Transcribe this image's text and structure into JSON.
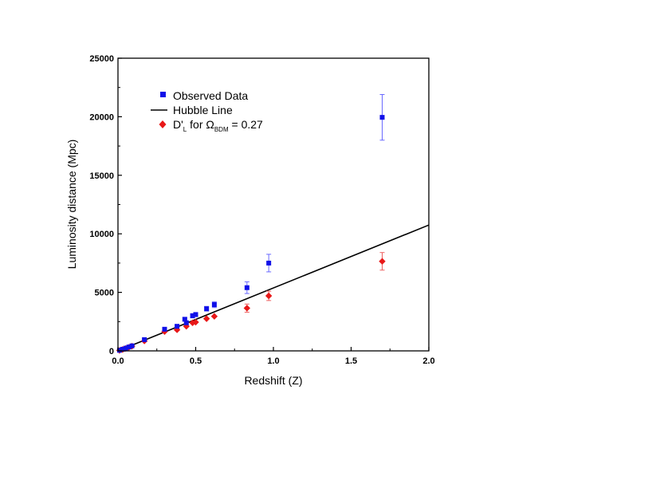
{
  "chart_data": {
    "type": "scatter",
    "xlabel": "Redshift (Z)",
    "ylabel": "Luminosity distance (Mpc)",
    "xlim": [
      0,
      2.0
    ],
    "ylim": [
      0,
      25000
    ],
    "x_ticks": [
      "0.0",
      "0.5",
      "1.0",
      "1.5",
      "2.0"
    ],
    "y_ticks": [
      "0",
      "5000",
      "10000",
      "15000",
      "20000",
      "25000"
    ],
    "grid": false,
    "legend_position": "top-left",
    "legend": {
      "observed": "Observed Data",
      "hubble": "Hubble Line",
      "dl_prefix": "D'",
      "dl_sub": "L",
      "dl_mid": " for ",
      "omega": "Ω",
      "omega_sub": "BDM",
      "dl_suffix": " = 0.27"
    },
    "colors": {
      "observed": "#1010e8",
      "hubble": "#000000",
      "dl": "#e81818",
      "observed_err": "#6a6aff",
      "dl_err": "#ee6060"
    },
    "series": [
      {
        "name": "Observed Data",
        "marker": "square",
        "points": [
          {
            "x": 0.01,
            "y": 50,
            "err": 0
          },
          {
            "x": 0.03,
            "y": 140,
            "err": 0
          },
          {
            "x": 0.05,
            "y": 230,
            "err": 0
          },
          {
            "x": 0.07,
            "y": 330,
            "err": 0
          },
          {
            "x": 0.09,
            "y": 430,
            "err": 0
          },
          {
            "x": 0.17,
            "y": 960,
            "err": 60
          },
          {
            "x": 0.3,
            "y": 1850,
            "err": 80
          },
          {
            "x": 0.38,
            "y": 2100,
            "err": 100
          },
          {
            "x": 0.43,
            "y": 2700,
            "err": 150
          },
          {
            "x": 0.44,
            "y": 2400,
            "err": 150
          },
          {
            "x": 0.48,
            "y": 3000,
            "err": 180
          },
          {
            "x": 0.5,
            "y": 3100,
            "err": 180
          },
          {
            "x": 0.57,
            "y": 3600,
            "err": 200
          },
          {
            "x": 0.62,
            "y": 3950,
            "err": 250
          },
          {
            "x": 0.83,
            "y": 5400,
            "err": 500
          },
          {
            "x": 0.97,
            "y": 7500,
            "err": 750
          },
          {
            "x": 1.7,
            "y": 19950,
            "err": 1950
          }
        ]
      },
      {
        "name": "Hubble Line",
        "marker": "line",
        "points": [
          {
            "x": 0.0,
            "y": 0
          },
          {
            "x": 2.0,
            "y": 10750
          }
        ]
      },
      {
        "name": "D'L for ΩBDM = 0.27",
        "marker": "diamond",
        "points": [
          {
            "x": 0.01,
            "y": 40,
            "err": 0
          },
          {
            "x": 0.03,
            "y": 120,
            "err": 0
          },
          {
            "x": 0.05,
            "y": 210,
            "err": 0
          },
          {
            "x": 0.07,
            "y": 300,
            "err": 0
          },
          {
            "x": 0.09,
            "y": 400,
            "err": 0
          },
          {
            "x": 0.17,
            "y": 850,
            "err": 0
          },
          {
            "x": 0.3,
            "y": 1650,
            "err": 0
          },
          {
            "x": 0.38,
            "y": 1800,
            "err": 0
          },
          {
            "x": 0.44,
            "y": 2100,
            "err": 0
          },
          {
            "x": 0.48,
            "y": 2400,
            "err": 0
          },
          {
            "x": 0.5,
            "y": 2450,
            "err": 0
          },
          {
            "x": 0.57,
            "y": 2750,
            "err": 0
          },
          {
            "x": 0.62,
            "y": 2950,
            "err": 0
          },
          {
            "x": 0.83,
            "y": 3650,
            "err": 350
          },
          {
            "x": 0.97,
            "y": 4700,
            "err": 400
          },
          {
            "x": 1.7,
            "y": 7650,
            "err": 750
          }
        ]
      }
    ]
  }
}
